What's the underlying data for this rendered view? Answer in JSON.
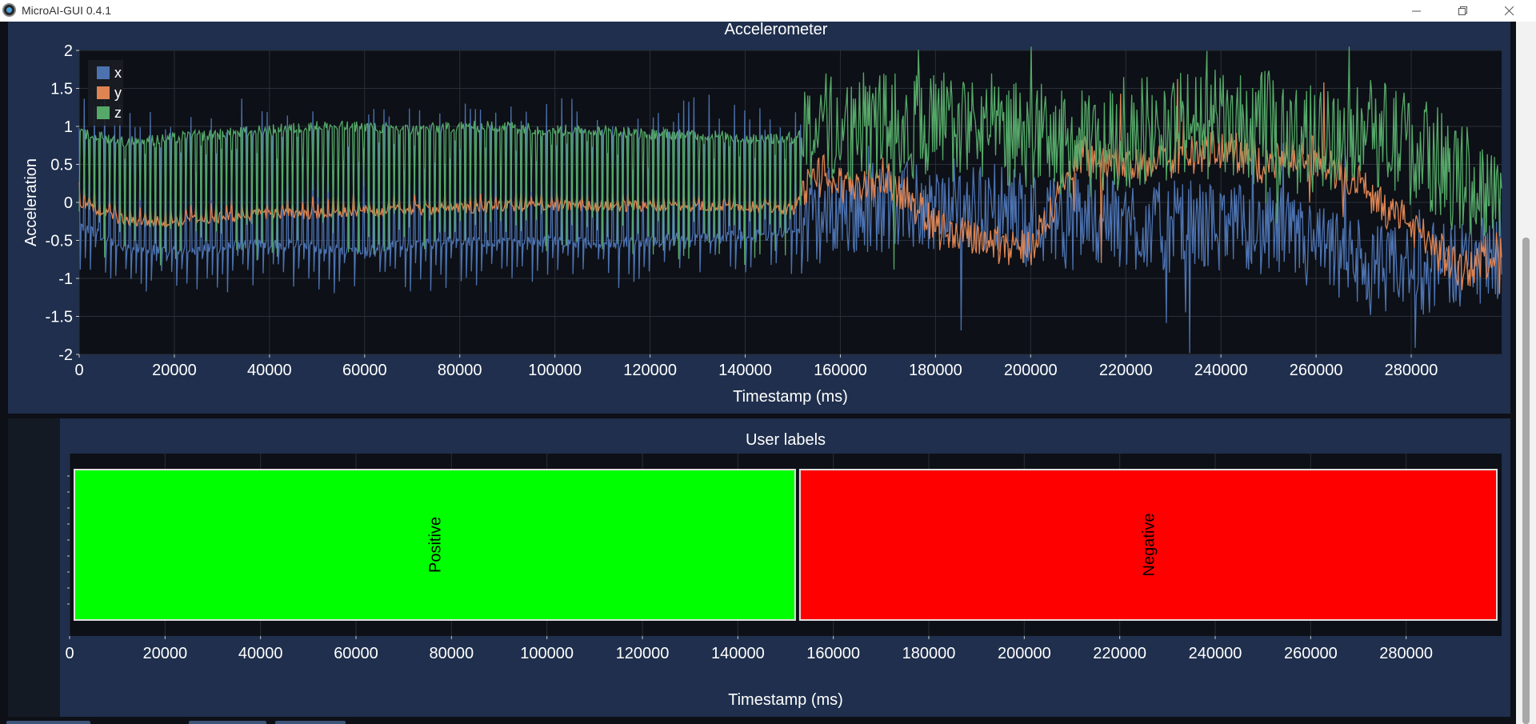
{
  "window": {
    "title": "MicroAI-GUI 0.4.1"
  },
  "accelerometer": {
    "title": "Accelerometer",
    "xlabel": "Timestamp (ms)",
    "ylabel": "Acceleration",
    "legend": [
      "x",
      "y",
      "z"
    ]
  },
  "user_labels": {
    "title": "User labels",
    "xlabel": "Timestamp (ms)",
    "segments": [
      {
        "label": "Positive",
        "start": 1000,
        "end": 152000,
        "color": "#00ff00"
      },
      {
        "label": "Negative",
        "start": 153000,
        "end": 299000,
        "color": "#ff0000"
      }
    ]
  },
  "colors": {
    "x": "#4c72b0",
    "y": "#dd8452",
    "z": "#55a868",
    "panel": "#1f2f4d",
    "plot_bg": "#0d1016"
  },
  "chart_data": [
    {
      "type": "line",
      "title": "Accelerometer",
      "xlabel": "Timestamp (ms)",
      "ylabel": "Acceleration",
      "xlim": [
        0,
        299000
      ],
      "ylim": [
        -2,
        2
      ],
      "xticks": [
        0,
        20000,
        40000,
        60000,
        80000,
        100000,
        120000,
        140000,
        160000,
        180000,
        200000,
        220000,
        240000,
        260000,
        280000
      ],
      "yticks": [
        -2,
        -1.5,
        -1,
        -0.5,
        0,
        0.5,
        1,
        1.5,
        2
      ],
      "grid": true,
      "legend_position": "top-left",
      "x": [
        0,
        10000,
        20000,
        30000,
        40000,
        50000,
        60000,
        70000,
        80000,
        90000,
        100000,
        110000,
        120000,
        130000,
        140000,
        150000,
        155000,
        160000,
        170000,
        180000,
        190000,
        200000,
        210000,
        220000,
        230000,
        240000,
        250000,
        260000,
        270000,
        280000,
        290000,
        299000
      ],
      "series": [
        {
          "name": "x",
          "values": [
            -0.3,
            -0.6,
            -0.65,
            -0.6,
            -0.55,
            -0.6,
            -0.65,
            -0.55,
            -0.5,
            -0.55,
            -0.5,
            -0.55,
            -0.5,
            -0.45,
            -0.45,
            -0.4,
            -0.2,
            -0.1,
            -0.05,
            -0.1,
            -0.05,
            -0.2,
            -0.15,
            -0.3,
            -0.35,
            -0.3,
            -0.4,
            -0.6,
            -0.9,
            -0.9,
            -0.8,
            -0.6
          ]
        },
        {
          "name": "y",
          "values": [
            0,
            -0.25,
            -0.25,
            -0.2,
            -0.15,
            -0.15,
            -0.12,
            -0.1,
            -0.08,
            -0.05,
            -0.05,
            -0.05,
            -0.05,
            -0.05,
            -0.05,
            -0.1,
            0.4,
            0.2,
            0.3,
            -0.3,
            -0.5,
            -0.6,
            0.6,
            0.5,
            0.6,
            0.7,
            0.5,
            0.6,
            0.2,
            -0.3,
            -0.9,
            -0.6
          ]
        },
        {
          "name": "z",
          "values": [
            0.9,
            0.8,
            0.85,
            0.9,
            0.95,
            1.0,
            1.0,
            0.95,
            1.0,
            1.0,
            0.95,
            0.95,
            0.9,
            0.9,
            0.85,
            0.85,
            1.0,
            0.95,
            1.0,
            1.0,
            0.95,
            0.85,
            0.7,
            0.85,
            1.0,
            1.0,
            0.95,
            0.8,
            1.0,
            0.7,
            0.3,
            0.1
          ]
        }
      ]
    },
    {
      "type": "bar",
      "title": "User labels",
      "xlabel": "Timestamp (ms)",
      "xlim": [
        0,
        300000
      ],
      "xticks": [
        0,
        20000,
        40000,
        60000,
        80000,
        100000,
        120000,
        140000,
        160000,
        180000,
        200000,
        220000,
        240000,
        260000,
        280000
      ],
      "categories": [
        "Positive",
        "Negative"
      ],
      "ranges": [
        [
          1000,
          152000
        ],
        [
          153000,
          299000
        ]
      ],
      "colors": [
        "#00ff00",
        "#ff0000"
      ]
    }
  ]
}
